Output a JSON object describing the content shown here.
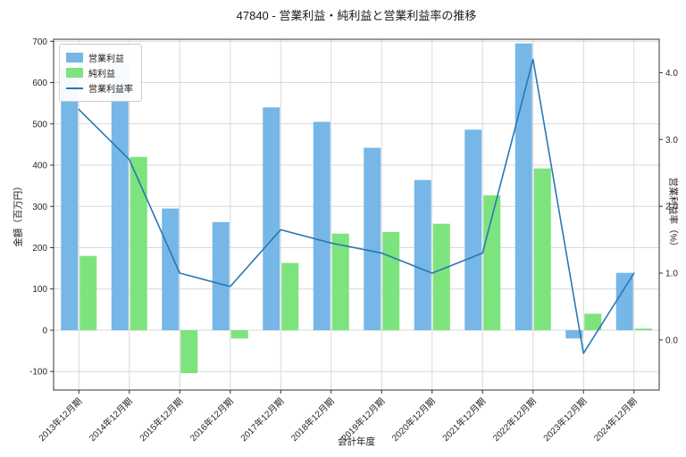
{
  "chart_data": {
    "type": "bar",
    "title": "47840 - 営業利益・純利益と営業利益率の推移",
    "xlabel": "会計年度",
    "ylabel_left": "金額（百万円）",
    "ylabel_right": "営業利益率（%）",
    "categories": [
      "2013年12月期",
      "2014年12月期",
      "2015年12月期",
      "2016年12月期",
      "2017年12月期",
      "2018年12月期",
      "2019年12月期",
      "2020年12月期",
      "2021年12月期",
      "2022年12月期",
      "2023年12月期",
      "2024年12月期"
    ],
    "left_axis": {
      "min": -145,
      "max": 705,
      "ticks": [
        -100,
        0,
        100,
        200,
        300,
        400,
        500,
        600,
        700
      ]
    },
    "right_axis": {
      "min": -0.75,
      "max": 4.5,
      "ticks": [
        0,
        1,
        2,
        3,
        4
      ],
      "tick_labels": [
        "0.0",
        "1.0",
        "2.0",
        "3.0",
        "4.0"
      ]
    },
    "series": [
      {
        "name": "営業利益",
        "type": "bar",
        "axis": "left",
        "color": "#76b7e8",
        "values": [
          635,
          645,
          295,
          262,
          540,
          505,
          442,
          364,
          486,
          695,
          -20,
          139
        ]
      },
      {
        "name": "純利益",
        "type": "bar",
        "axis": "left",
        "color": "#7de37d",
        "values": [
          180,
          420,
          -104,
          -20,
          163,
          234,
          238,
          258,
          327,
          392,
          40,
          4
        ]
      },
      {
        "name": "営業利益率",
        "type": "line",
        "axis": "right",
        "color": "#2878b4",
        "values": [
          3.45,
          2.7,
          1.0,
          0.8,
          1.65,
          1.45,
          1.3,
          1.0,
          1.3,
          4.2,
          -0.2,
          1.0
        ]
      }
    ],
    "grid": true,
    "legend_position": "upper left",
    "colors": {
      "grid": "#d9d9d9",
      "spine": "#333333",
      "tick_text": "#262626",
      "background": "#ffffff"
    }
  }
}
